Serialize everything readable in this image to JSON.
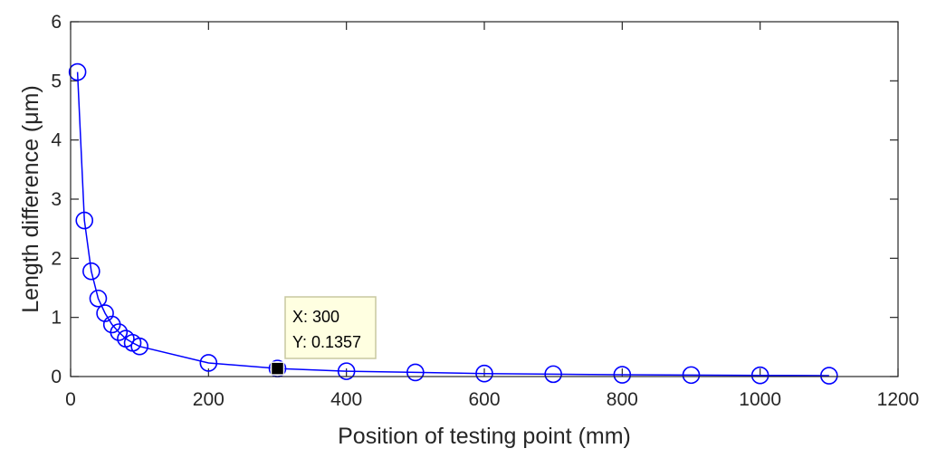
{
  "chart_data": {
    "type": "line",
    "title": "",
    "xlabel": "Position of testing point (mm)",
    "ylabel": "Length difference (μm)",
    "xlim": [
      0,
      1200
    ],
    "ylim": [
      0,
      6
    ],
    "xticks": [
      "0",
      "200",
      "400",
      "600",
      "800",
      "1000",
      "1200"
    ],
    "yticks": [
      "0",
      "1",
      "2",
      "3",
      "4",
      "5",
      "6"
    ],
    "grid": false,
    "legend": "none",
    "series": [
      {
        "marker": "circle",
        "color": "#0000ff",
        "x": [
          10,
          20,
          30,
          40,
          50,
          60,
          70,
          80,
          90,
          100,
          200,
          300,
          400,
          500,
          600,
          700,
          800,
          900,
          1000,
          1100
        ],
        "y": [
          5.15,
          2.64,
          1.78,
          1.32,
          1.07,
          0.88,
          0.75,
          0.64,
          0.57,
          0.51,
          0.23,
          0.1357,
          0.09,
          0.07,
          0.05,
          0.04,
          0.03,
          0.025,
          0.02,
          0.015
        ]
      }
    ],
    "datatip": {
      "x": 300,
      "y": 0.1357,
      "x_label": "X: 300",
      "y_label": "Y: 0.1357"
    }
  }
}
